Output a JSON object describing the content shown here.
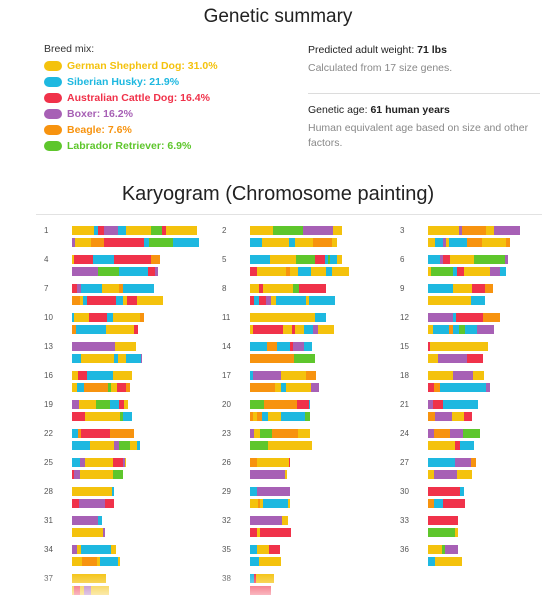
{
  "summary_title": "Genetic summary",
  "breed_mix": {
    "label": "Breed mix:",
    "items": [
      {
        "name": "German Shepherd Dog: 31.0%",
        "color": "#f4c20d"
      },
      {
        "name": "Siberian Husky: 21.9%",
        "color": "#1eb8e0"
      },
      {
        "name": "Australian Cattle Dog: 16.4%",
        "color": "#f0324a"
      },
      {
        "name": "Boxer: 16.2%",
        "color": "#a760b5"
      },
      {
        "name": "Beagle: 7.6%",
        "color": "#f7930f"
      },
      {
        "name": "Labrador Retriever: 6.9%",
        "color": "#5ec62c"
      }
    ]
  },
  "weight": {
    "label": "Predicted adult weight:",
    "value": "71 lbs",
    "note": "Calculated from 17 size genes."
  },
  "age": {
    "label": "Genetic age:",
    "value": "61 human years",
    "note": "Human equivalent age based on size and other factors."
  },
  "karyogram_title": "Karyogram (Chromosome painting)",
  "chromosomes": [
    "1",
    "2",
    "3",
    "4",
    "5",
    "6",
    "7",
    "8",
    "9",
    "10",
    "11",
    "12",
    "13",
    "14",
    "15",
    "16",
    "17",
    "18",
    "19",
    "20",
    "21",
    "22",
    "23",
    "24",
    "25",
    "26",
    "27",
    "28",
    "29",
    "30",
    "31",
    "32",
    "33",
    "34",
    "35",
    "36",
    "37",
    "38"
  ]
}
